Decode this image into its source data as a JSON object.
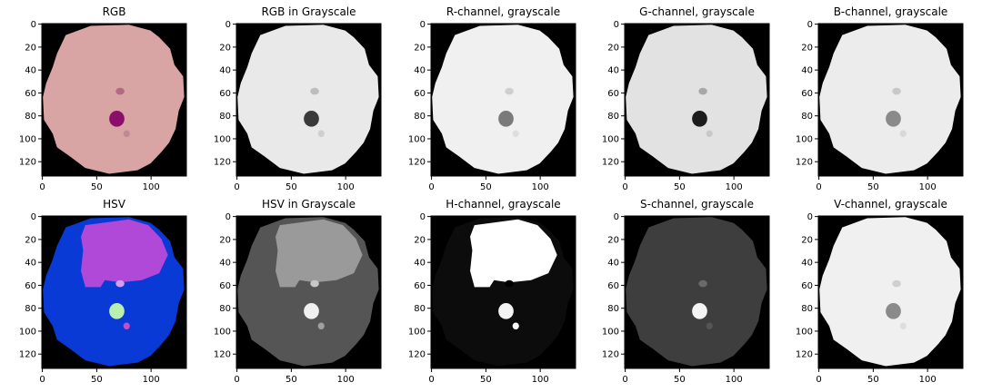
{
  "figure": {
    "x_ticks": [
      "0",
      "50",
      "100"
    ],
    "y_ticks": [
      "0",
      "20",
      "40",
      "60",
      "80",
      "100",
      "120"
    ],
    "panels": [
      {
        "title": "RGB",
        "colors": {
          "bg": "#000000",
          "cell": "#d8a4a4",
          "spot1": "#b06a86",
          "spot2": "#8a0f6b",
          "spot3": "#c08a92"
        }
      },
      {
        "title": "RGB in Grayscale",
        "colors": {
          "bg": "#000000",
          "cell": "#e9e9e9",
          "spot1": "#bdbdbd",
          "spot2": "#3a3a3a",
          "spot3": "#cfcfcf"
        }
      },
      {
        "title": "R-channel, grayscale",
        "colors": {
          "bg": "#000000",
          "cell": "#f0f0f0",
          "spot1": "#cfcfcf",
          "spot2": "#7a7a7a",
          "spot3": "#dedede"
        }
      },
      {
        "title": "G-channel, grayscale",
        "colors": {
          "bg": "#000000",
          "cell": "#e2e2e2",
          "spot1": "#a8a8a8",
          "spot2": "#1c1c1c",
          "spot3": "#c8c8c8"
        }
      },
      {
        "title": "B-channel, grayscale",
        "colors": {
          "bg": "#000000",
          "cell": "#ececec",
          "spot1": "#c8c8c8",
          "spot2": "#8a8a8a",
          "spot3": "#d8d8d8"
        }
      },
      {
        "title": "HSV",
        "colors": {
          "bg": "#000000",
          "cell": "#0a3ad6",
          "inner": "#b048d8",
          "spot1": "#d0a0e8",
          "spot2": "#b8f0b0",
          "spot3": "#c050c8"
        }
      },
      {
        "title": "HSV in Grayscale",
        "colors": {
          "bg": "#000000",
          "cell": "#555555",
          "inner": "#9a9a9a",
          "spot1": "#c8c8c8",
          "spot2": "#f0f0f0",
          "spot3": "#a0a0a0"
        }
      },
      {
        "title": "H-channel, grayscale",
        "colors": {
          "bg": "#000000",
          "cell": "#0c0c0c",
          "inner": "#ffffff",
          "spot1": "#000000",
          "spot2": "#f4f4f4",
          "spot3": "#ffffff"
        }
      },
      {
        "title": "S-channel, grayscale",
        "colors": {
          "bg": "#000000",
          "cell": "#3e3e3e",
          "inner": "#3e3e3e",
          "spot1": "#6a6a6a",
          "spot2": "#f4f4f4",
          "spot3": "#555555"
        }
      },
      {
        "title": "V-channel, grayscale",
        "colors": {
          "bg": "#000000",
          "cell": "#f0f0f0",
          "spot1": "#cfcfcf",
          "spot2": "#8a8a8a",
          "spot3": "#dedede"
        }
      }
    ]
  }
}
